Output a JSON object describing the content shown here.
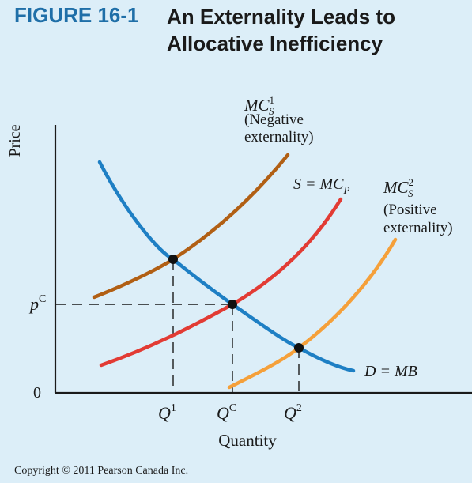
{
  "figure": {
    "label": "FIGURE 16-1",
    "title_line1": "An Externality Leads to",
    "title_line2": "Allocative Inefficiency"
  },
  "axes": {
    "ylabel": "Price",
    "xlabel": "Quantity",
    "origin": "0"
  },
  "curves": {
    "mcs1": {
      "name": "MC",
      "sub": "S",
      "sup": "1",
      "note1": "(Negative",
      "note2": "externality)"
    },
    "mcp": {
      "lhs": "S = MC",
      "sub": "P"
    },
    "mcs2": {
      "name": "MC",
      "sub": "S",
      "sup": "2",
      "note1": "(Positive",
      "note2": "externality)"
    },
    "demand": {
      "label": "D = MB"
    }
  },
  "ticks": {
    "pc": {
      "base": "p",
      "sup": "C"
    },
    "q1": {
      "base": "Q",
      "sup": "1"
    },
    "qc": {
      "base": "Q",
      "sup": "C"
    },
    "q2": {
      "base": "Q",
      "sup": "2"
    }
  },
  "colors": {
    "title": "#1f6fa8",
    "background": "#dceef8",
    "demand": "#1e7fc4",
    "mcs1": "#b15f14",
    "mcp": "#e23b34",
    "mcs2": "#f5a03a"
  },
  "copyright": "Copyright © 2011 Pearson Canada Inc."
}
